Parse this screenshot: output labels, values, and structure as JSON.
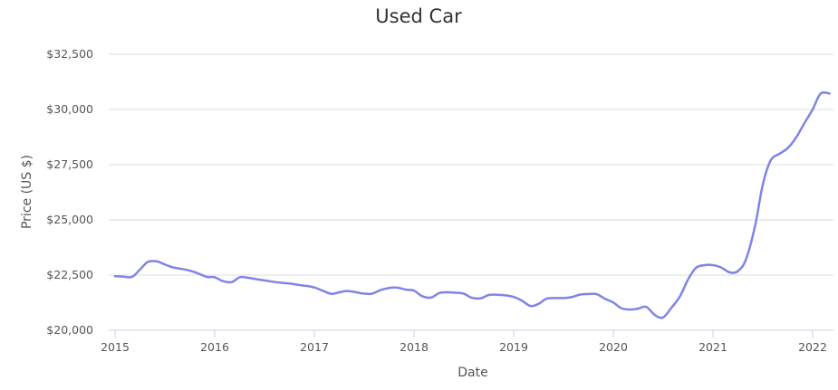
{
  "chart_data": {
    "type": "line",
    "title": "Used Car",
    "xlabel": "Date",
    "ylabel": "Price (US $)",
    "xlim": [
      2015,
      2022.25
    ],
    "ylim": [
      20000,
      32500
    ],
    "y_ticks": [
      20000,
      22500,
      25000,
      27500,
      30000,
      32500
    ],
    "y_tick_labels": [
      "$20,000",
      "$22,500",
      "$25,000",
      "$27,500",
      "$30,000",
      "$32,500"
    ],
    "x_ticks": [
      2015,
      2016,
      2017,
      2018,
      2019,
      2020,
      2021,
      2022
    ],
    "x_tick_labels": [
      "2015",
      "2016",
      "2017",
      "2018",
      "2019",
      "2020",
      "2021",
      "2022"
    ],
    "grid": true,
    "color": "#7f85e3",
    "series": [
      {
        "x": [
          2015.0,
          2015.08,
          2015.17,
          2015.25,
          2015.33,
          2015.42,
          2015.5,
          2015.58,
          2015.67,
          2015.75,
          2015.83,
          2015.92,
          2016.0,
          2016.08,
          2016.17,
          2016.25,
          2016.33,
          2016.42,
          2016.5,
          2016.58,
          2016.67,
          2016.75,
          2016.83,
          2016.92,
          2017.0,
          2017.08,
          2017.17,
          2017.25,
          2017.33,
          2017.42,
          2017.5,
          2017.58,
          2017.67,
          2017.75,
          2017.83,
          2017.92,
          2018.0,
          2018.08,
          2018.17,
          2018.25,
          2018.33,
          2018.42,
          2018.5,
          2018.58,
          2018.67,
          2018.75,
          2018.83,
          2018.92,
          2019.0,
          2019.08,
          2019.17,
          2019.25,
          2019.33,
          2019.42,
          2019.5,
          2019.58,
          2019.67,
          2019.75,
          2019.83,
          2019.92,
          2020.0,
          2020.08,
          2020.17,
          2020.25,
          2020.33,
          2020.42,
          2020.5,
          2020.58,
          2020.67,
          2020.75,
          2020.83,
          2020.92,
          2021.0,
          2021.08,
          2021.17,
          2021.25,
          2021.33,
          2021.42,
          2021.5,
          2021.58,
          2021.67,
          2021.75,
          2021.83,
          2021.92,
          2022.0,
          2022.08,
          2022.17
        ],
        "y": [
          22450,
          22430,
          22420,
          22750,
          23100,
          23120,
          22980,
          22850,
          22780,
          22700,
          22580,
          22420,
          22400,
          22230,
          22180,
          22400,
          22380,
          22310,
          22260,
          22200,
          22150,
          22120,
          22060,
          22010,
          21940,
          21800,
          21650,
          21720,
          21780,
          21720,
          21660,
          21660,
          21830,
          21920,
          21930,
          21840,
          21800,
          21550,
          21480,
          21680,
          21720,
          21700,
          21660,
          21470,
          21450,
          21600,
          21610,
          21580,
          21510,
          21350,
          21100,
          21200,
          21430,
          21460,
          21460,
          21500,
          21620,
          21640,
          21640,
          21420,
          21260,
          21000,
          20940,
          20980,
          21060,
          20680,
          20580,
          21000,
          21550,
          22300,
          22830,
          22950,
          22950,
          22850,
          22620,
          22680,
          23200,
          24680,
          26600,
          27700,
          28000,
          28250,
          28700,
          29400,
          30000,
          30720,
          30720
        ]
      }
    ]
  }
}
